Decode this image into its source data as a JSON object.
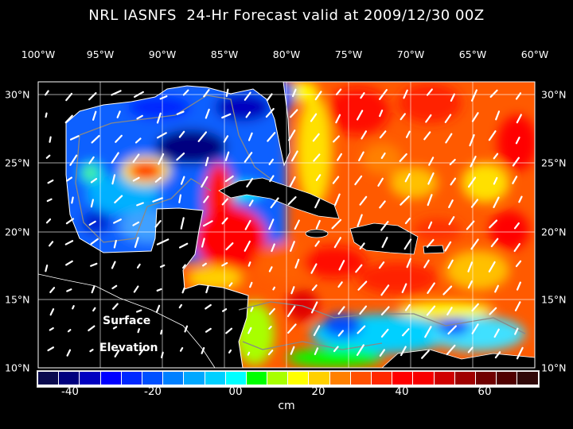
{
  "title": "NRL IASNFS  24-Hr Forecast valid at 2009/12/30 00Z",
  "lon_labels": [
    "100°W",
    "95°W",
    "90°W",
    "85°W",
    "80°W",
    "75°W",
    "70°W",
    "65°W",
    "60°W"
  ],
  "lat_labels": [
    "30°N",
    "25°N",
    "20°N",
    "15°N",
    "10°N"
  ],
  "annotation": {
    "line1": "Surface",
    "line2": "Elevation"
  },
  "colorbar": {
    "unit": "cm",
    "labels": [
      "-40",
      "-20",
      "00",
      "20",
      "40",
      "60"
    ],
    "colors": [
      "#0a0a4e",
      "#00007e",
      "#0000c0",
      "#0000ff",
      "#0028ff",
      "#0050ff",
      "#0080ff",
      "#00a8ff",
      "#00d0ff",
      "#00ffff",
      "#00ff00",
      "#a8ff00",
      "#ffff00",
      "#ffd000",
      "#ff8000",
      "#ff5000",
      "#ff2800",
      "#ff0000",
      "#f80000",
      "#d00000",
      "#a00000",
      "#700000",
      "#500000",
      "#300808"
    ]
  }
}
